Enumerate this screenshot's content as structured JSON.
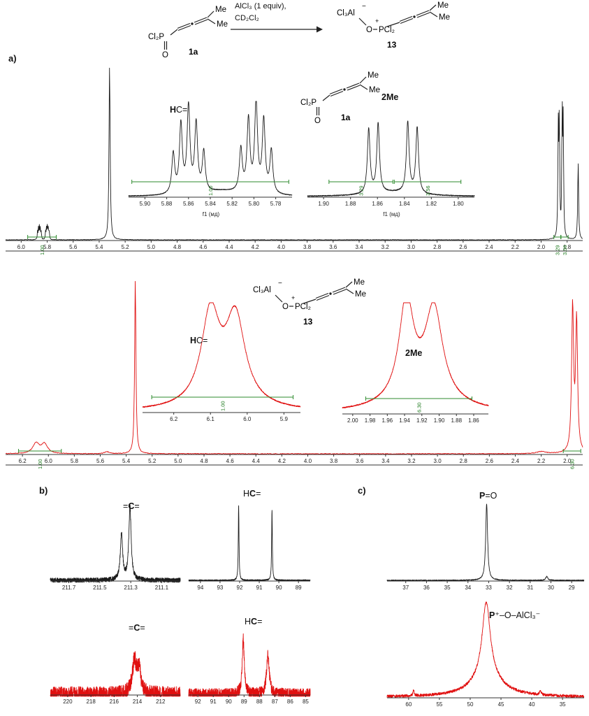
{
  "scheme": {
    "conditions_line1": "AlCl₃ (1 equiv),",
    "conditions_line2": "CD₂Cl₂"
  },
  "panels": {
    "a": "a)",
    "b": "b)",
    "c": "c)"
  },
  "structures": {
    "s1a": {
      "group": "Cl₂P",
      "o": "O",
      "me1": "Me",
      "me2": "Me",
      "label": "1a"
    },
    "s13": {
      "al": "Cl₃Al",
      "minus": "−",
      "o": "O",
      "p": "PCl₂",
      "plus": "+",
      "me1": "Me",
      "me2": "Me",
      "label": "13"
    }
  },
  "annotations": {
    "hc_h": {
      "pre": "",
      "bold": "H",
      "post": "C="
    },
    "me2": {
      "pre": "",
      "bold": "2Me",
      "post": ""
    },
    "hc_c": {
      "pre": "H",
      "bold": "C",
      "post": "="
    },
    "allene_c": {
      "pre": "=",
      "bold": "C",
      "post": "="
    },
    "po": {
      "pre": "",
      "bold": "P",
      "post": "=O"
    },
    "p_adduct": {
      "pre": "",
      "bold": "P",
      "post": "⁺–O–AlCl₃⁻"
    }
  },
  "chart_data": [
    {
      "id": "1H-1a-full",
      "type": "line",
      "color": "#1c1c1c",
      "xlim": [
        6.12,
        1.68
      ],
      "decimals": 1,
      "ruler": true,
      "xlabel": "",
      "noise": 0.0015,
      "ticks": [
        6.0,
        5.8,
        5.6,
        5.4,
        5.2,
        5.0,
        4.8,
        4.6,
        4.4,
        4.2,
        4.0,
        3.8,
        3.6,
        3.4,
        3.2,
        3.0,
        2.8,
        2.6,
        2.4,
        2.2,
        2.0,
        1.8
      ],
      "peaks": [
        [
          5.874,
          0.045,
          0.0025
        ],
        [
          5.867,
          0.062,
          0.0025
        ],
        [
          5.86,
          0.072,
          0.0025
        ],
        [
          5.853,
          0.062,
          0.0025
        ],
        [
          5.846,
          0.045,
          0.0025
        ],
        [
          5.812,
          0.048,
          0.0025
        ],
        [
          5.805,
          0.068,
          0.0025
        ],
        [
          5.798,
          0.078,
          0.0025
        ],
        [
          5.791,
          0.068,
          0.0025
        ],
        [
          5.784,
          0.048,
          0.0025
        ],
        [
          5.32,
          1.0,
          0.005
        ],
        [
          1.868,
          0.6,
          0.0035
        ],
        [
          1.86,
          0.64,
          0.0035
        ],
        [
          1.838,
          0.68,
          0.0035
        ],
        [
          1.83,
          0.63,
          0.0035
        ],
        [
          1.715,
          0.45,
          0.004
        ]
      ],
      "integrals": [
        {
          "x1": 5.95,
          "x2": 5.73,
          "label": "1.00"
        },
        {
          "x1": 1.902,
          "x2": 1.849,
          "label": "3.29"
        },
        {
          "x1": 1.847,
          "x2": 1.792,
          "label": "3.56"
        }
      ]
    },
    {
      "id": "1H-1a-inset-HC",
      "type": "line",
      "color": "#1c1c1c",
      "xlim": [
        5.915,
        5.765
      ],
      "decimals": 2,
      "xlabel": "f1 (мд)",
      "noise": 0.004,
      "integral_high": true,
      "ticks": [
        5.9,
        5.88,
        5.86,
        5.84,
        5.82,
        5.8,
        5.78
      ],
      "peaks": [
        [
          5.874,
          0.42,
          0.0016
        ],
        [
          5.867,
          0.72,
          0.0016
        ],
        [
          5.86,
          0.9,
          0.0016
        ],
        [
          5.853,
          0.72,
          0.0016
        ],
        [
          5.846,
          0.42,
          0.0016
        ],
        [
          5.812,
          0.45,
          0.0016
        ],
        [
          5.805,
          0.76,
          0.0016
        ],
        [
          5.798,
          0.94,
          0.0016
        ],
        [
          5.791,
          0.76,
          0.0016
        ],
        [
          5.784,
          0.45,
          0.0016
        ],
        [
          5.829,
          0.05,
          0.02
        ]
      ],
      "integrals": [
        {
          "x1": 5.912,
          "x2": 5.768,
          "label": "1.00"
        }
      ]
    },
    {
      "id": "1H-1a-inset-2Me",
      "type": "line",
      "color": "#1c1c1c",
      "xlim": [
        1.912,
        1.788
      ],
      "decimals": 2,
      "xlabel": "f1 (мд)",
      "noise": 0.006,
      "integral_high": true,
      "ticks": [
        1.9,
        1.88,
        1.86,
        1.84,
        1.82,
        1.8
      ],
      "peaks": [
        [
          1.8665,
          0.82,
          0.0012
        ],
        [
          1.8595,
          0.88,
          0.0012
        ],
        [
          1.8375,
          0.9,
          0.0012
        ],
        [
          1.8305,
          0.84,
          0.0012
        ],
        [
          1.848,
          0.05,
          0.02
        ]
      ],
      "integrals": [
        {
          "x1": 1.896,
          "x2": 1.8485,
          "label": "3.29"
        },
        {
          "x1": 1.8475,
          "x2": 1.798,
          "label": "3.56"
        }
      ]
    },
    {
      "id": "1H-13-full",
      "type": "line",
      "color": "#e01010",
      "xlim": [
        6.33,
        1.88
      ],
      "decimals": 1,
      "ruler": true,
      "xlabel": "",
      "noise": 0.002,
      "ticks": [
        6.2,
        6.0,
        5.8,
        5.6,
        5.4,
        5.2,
        5.0,
        4.8,
        4.6,
        4.4,
        4.2,
        4.0,
        3.8,
        3.6,
        3.4,
        3.2,
        3.0,
        2.8,
        2.6,
        2.4,
        2.2,
        2.0
      ],
      "peaks": [
        [
          6.095,
          0.06,
          0.03
        ],
        [
          6.03,
          0.055,
          0.028
        ],
        [
          5.33,
          1.0,
          0.006
        ],
        [
          5.55,
          0.012,
          0.02
        ],
        [
          2.2,
          0.012,
          0.04
        ],
        [
          1.958,
          0.84,
          0.009
        ],
        [
          1.927,
          0.76,
          0.009
        ]
      ],
      "integrals": [
        {
          "x1": 6.23,
          "x2": 5.9,
          "label": "1.00"
        },
        {
          "x1": 2.03,
          "x2": 1.895,
          "label": "6.30"
        }
      ]
    },
    {
      "id": "1H-13-inset-HC",
      "type": "line",
      "color": "#e01010",
      "xlim": [
        6.285,
        5.855
      ],
      "decimals": 1,
      "xlabel": "",
      "noise": 0.005,
      "integral_high": true,
      "ticks": [
        6.2,
        6.1,
        6.0,
        5.9
      ],
      "peaks": [
        [
          6.1,
          0.82,
          0.03
        ],
        [
          6.032,
          0.78,
          0.032
        ],
        [
          6.066,
          0.06,
          0.1
        ]
      ],
      "integrals": [
        {
          "x1": 6.26,
          "x2": 5.875,
          "label": "1.00"
        }
      ]
    },
    {
      "id": "1H-13-inset-2Me",
      "type": "line",
      "color": "#e01010",
      "xlim": [
        2.012,
        1.843
      ],
      "decimals": 2,
      "xlabel": "",
      "noise": 0.005,
      "integral_high": true,
      "ticks": [
        2.0,
        1.98,
        1.96,
        1.94,
        1.92,
        1.9,
        1.88,
        1.86
      ],
      "peaks": [
        [
          1.938,
          0.88,
          0.01
        ],
        [
          1.906,
          0.8,
          0.012
        ],
        [
          1.92,
          0.15,
          0.04
        ]
      ],
      "integrals": [
        {
          "x1": 1.985,
          "x2": 1.862,
          "label": "6.30"
        }
      ]
    },
    {
      "id": "13C-1a-allene",
      "type": "line",
      "color": "#1c1c1c",
      "xlim": [
        211.82,
        210.98
      ],
      "decimals": 1,
      "xlabel": "",
      "noise": 0.03,
      "ticks": [
        211.7,
        211.5,
        211.3,
        211.1
      ],
      "peaks": [
        [
          211.36,
          0.58,
          0.009
        ],
        [
          211.305,
          0.92,
          0.009
        ]
      ]
    },
    {
      "id": "13C-1a-HC",
      "type": "line",
      "color": "#1c1c1c",
      "xlim": [
        94.6,
        88.4
      ],
      "decimals": 0,
      "xlabel": "",
      "noise": 0.008,
      "ticks": [
        94,
        93,
        92,
        91,
        90,
        89
      ],
      "peaks": [
        [
          92.05,
          0.95,
          0.022
        ],
        [
          90.35,
          0.88,
          0.022
        ]
      ]
    },
    {
      "id": "13C-13-allene",
      "type": "line",
      "color": "#e01010",
      "xlim": [
        221.5,
        210.3
      ],
      "decimals": 0,
      "xlabel": "",
      "noise": 0.1,
      "ticks": [
        220,
        218,
        216,
        214,
        212
      ],
      "peaks": [
        [
          214.25,
          0.42,
          0.22
        ],
        [
          213.85,
          0.3,
          0.18
        ]
      ]
    },
    {
      "id": "13C-13-HC",
      "type": "line",
      "color": "#e01010",
      "xlim": [
        92.6,
        84.7
      ],
      "decimals": 0,
      "xlabel": "",
      "noise": 0.075,
      "ticks": [
        92,
        91,
        90,
        89,
        88,
        87,
        86,
        85
      ],
      "peaks": [
        [
          89.05,
          0.72,
          0.08
        ],
        [
          87.45,
          0.52,
          0.1
        ]
      ]
    },
    {
      "id": "31P-1a",
      "type": "line",
      "color": "#1c1c1c",
      "xlim": [
        37.9,
        28.4
      ],
      "decimals": 0,
      "xlabel": "",
      "noise": 0.006,
      "ticks": [
        37,
        36,
        35,
        34,
        33,
        32,
        31,
        30,
        29
      ],
      "peaks": [
        [
          33.1,
          0.97,
          0.055
        ],
        [
          30.2,
          0.05,
          0.06
        ]
      ]
    },
    {
      "id": "31P-13",
      "type": "line",
      "color": "#e01010",
      "xlim": [
        63.5,
        31.5
      ],
      "decimals": 0,
      "xlabel": "",
      "noise": 0.015,
      "ticks": [
        60,
        55,
        50,
        45,
        40,
        35
      ],
      "peaks": [
        [
          47.4,
          0.8,
          0.8
        ],
        [
          47.3,
          0.2,
          3.0
        ],
        [
          59.2,
          0.06,
          0.12
        ],
        [
          38.6,
          0.05,
          0.12
        ]
      ]
    }
  ]
}
